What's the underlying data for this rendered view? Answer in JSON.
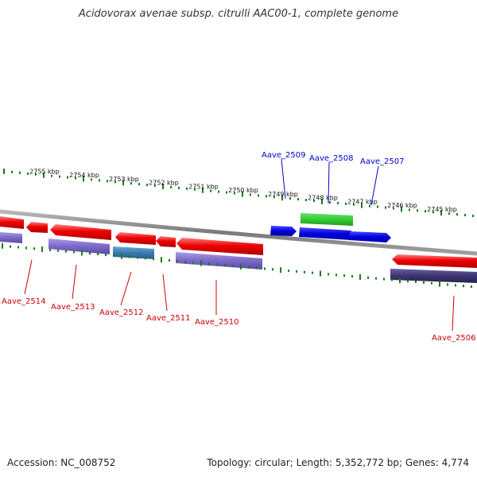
{
  "title": "Acidovorax avenae subsp. citrulli AAC00-1, complete genome",
  "footer": {
    "accession": "Accession: NC_008752",
    "topology": "Topology: circular; Length: 5,352,772 bp; Genes: 4,774"
  },
  "colors": {
    "forward_gene": "#0000dd",
    "forward_gene_label": "#0000cc",
    "reverse_gene": "#ee0000",
    "reverse_gene_label": "#cc0000",
    "reverse_feature": "#7b68c8",
    "reverse_feature_alt": "#3b7ab0",
    "reverse_feature_dark": "#3c3470",
    "forward_feature": "#33cc33",
    "tick": "#1a7a1a",
    "backbone": "#888888"
  },
  "scale": {
    "unit": "kbp",
    "ticks_kbp": [
      2755,
      2754,
      2753,
      2752,
      2751,
      2750,
      2749,
      2748,
      2747,
      2746,
      2745
    ],
    "tick_labels": [
      "2755 kbp",
      "2754 kbp",
      "2753 kbp",
      "2752 kbp",
      "2751 kbp",
      "2750 kbp",
      "2749 kbp",
      "2748 kbp",
      "2747 kbp",
      "2746 kbp",
      "2745 kbp"
    ]
  },
  "genes": {
    "forward": [
      "Aave_2509",
      "Aave_2508",
      "Aave_2507"
    ],
    "reverse": [
      "Aave_2514",
      "Aave_2513",
      "Aave_2512",
      "Aave_2511",
      "Aave_2510",
      "Aave_2506"
    ]
  }
}
